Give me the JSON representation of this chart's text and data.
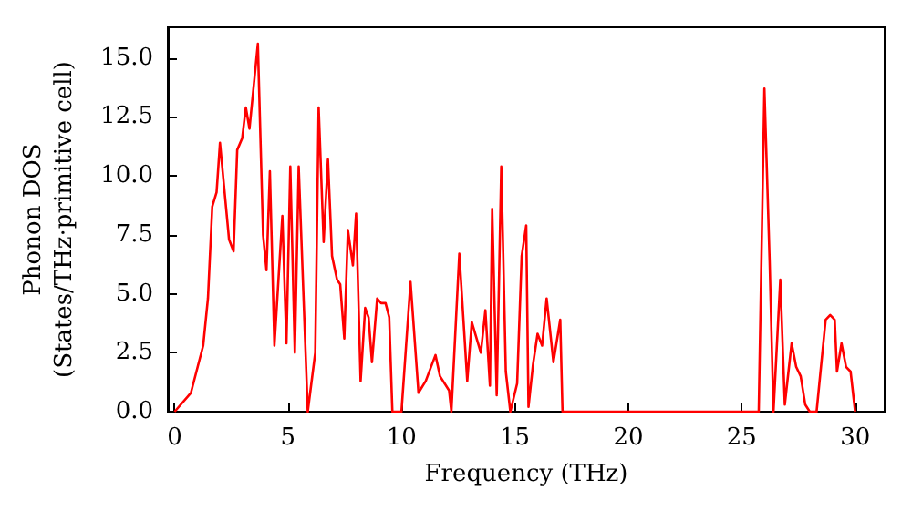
{
  "chart_data": {
    "type": "line",
    "xlabel": "Frequency (THz)",
    "ylabel": "Phonon DOS\n(States/THz·primitive cell)",
    "xlim": [
      -0.3,
      31.3
    ],
    "xticks": [
      0,
      5,
      10,
      15,
      20,
      25,
      30
    ],
    "ylim": [
      0,
      16.3
    ],
    "yticks": [
      {
        "value": 0,
        "label": "0.0"
      },
      {
        "value": 2.5,
        "label": "2.5"
      },
      {
        "value": 5,
        "label": "5.0"
      },
      {
        "value": 7.5,
        "label": "7.5"
      },
      {
        "value": 10,
        "label": "10.0"
      },
      {
        "value": 12.5,
        "label": "12.5"
      },
      {
        "value": 15,
        "label": "15.0"
      }
    ],
    "marker": "none",
    "line_style": "solid",
    "series": [
      {
        "color": "#ff0000",
        "x": [
          0,
          0.72,
          1.26,
          1.47,
          1.66,
          1.85,
          2.0,
          2.4,
          2.6,
          2.76,
          2.98,
          3.14,
          3.3,
          3.67,
          3.9,
          4.05,
          4.2,
          4.4,
          4.75,
          4.93,
          5.1,
          5.3,
          5.47,
          5.87,
          6.2,
          6.35,
          6.57,
          6.76,
          6.94,
          7.16,
          7.3,
          7.48,
          7.64,
          7.86,
          8.0,
          8.2,
          8.4,
          8.55,
          8.7,
          8.93,
          9.1,
          9.3,
          9.46,
          9.6,
          10.0,
          10.4,
          10.75,
          11.07,
          11.5,
          11.7,
          12.1,
          12.2,
          12.55,
          12.9,
          13.1,
          13.5,
          13.7,
          13.9,
          14.0,
          14.2,
          14.4,
          14.6,
          14.8,
          15.1,
          15.3,
          15.5,
          15.6,
          15.8,
          16.0,
          16.2,
          16.4,
          16.7,
          17.0,
          17.1,
          25.75,
          26.0,
          26.23,
          26.4,
          26.7,
          26.9,
          27.2,
          27.4,
          27.6,
          27.8,
          28.0,
          28.3,
          28.7,
          28.9,
          29.1,
          29.2,
          29.4,
          29.6,
          29.8,
          30.0
        ],
        "values": [
          0,
          0.8,
          2.8,
          4.8,
          8.7,
          9.3,
          11.4,
          7.3,
          6.8,
          11.1,
          11.6,
          12.9,
          12.0,
          15.6,
          7.5,
          6.0,
          10.2,
          2.8,
          8.3,
          2.9,
          10.4,
          2.5,
          10.4,
          0,
          2.5,
          12.9,
          7.2,
          10.7,
          6.6,
          5.6,
          5.4,
          3.1,
          7.7,
          6.2,
          8.4,
          1.3,
          4.4,
          4.0,
          2.1,
          4.8,
          4.6,
          4.6,
          4.0,
          0,
          0,
          5.5,
          0.8,
          1.3,
          2.4,
          1.5,
          0.9,
          0,
          6.7,
          1.3,
          3.8,
          2.5,
          4.3,
          1.1,
          8.6,
          0.7,
          10.4,
          1.7,
          0,
          1.2,
          6.6,
          7.9,
          0.2,
          2.0,
          3.3,
          2.8,
          4.8,
          2.1,
          3.9,
          0,
          0,
          13.7,
          6.4,
          0,
          5.6,
          0.3,
          2.9,
          1.9,
          1.5,
          0.3,
          0,
          0,
          3.9,
          4.1,
          3.9,
          1.7,
          2.9,
          1.9,
          1.7,
          0
        ]
      }
    ]
  }
}
